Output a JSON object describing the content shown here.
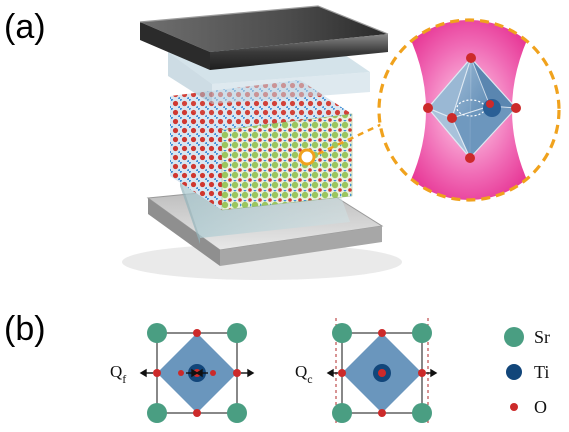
{
  "panels": {
    "a": {
      "label": "(a)"
    },
    "b": {
      "label": "(b)"
    }
  },
  "modes": [
    {
      "symbol": "Q",
      "subscript": "f"
    },
    {
      "symbol": "Q",
      "subscript": "c"
    }
  ],
  "legend": [
    {
      "label": "Sr",
      "color": "#4a9e82",
      "marker": "large-circle"
    },
    {
      "label": "Ti",
      "color": "#12467a",
      "marker": "medium-circle"
    },
    {
      "label": "O",
      "color": "#cc2a2a",
      "marker": "small-circle"
    }
  ],
  "colors": {
    "octahedron": "#6a96bd",
    "cavity_glow": "#ec3d9c",
    "zoom_ring": "#f0a21d",
    "mirror": "#5d5d5d",
    "crystal_green": "#9ac65d",
    "crystal_red": "#d0372f",
    "crystal_blue": "#3e8ed6"
  }
}
